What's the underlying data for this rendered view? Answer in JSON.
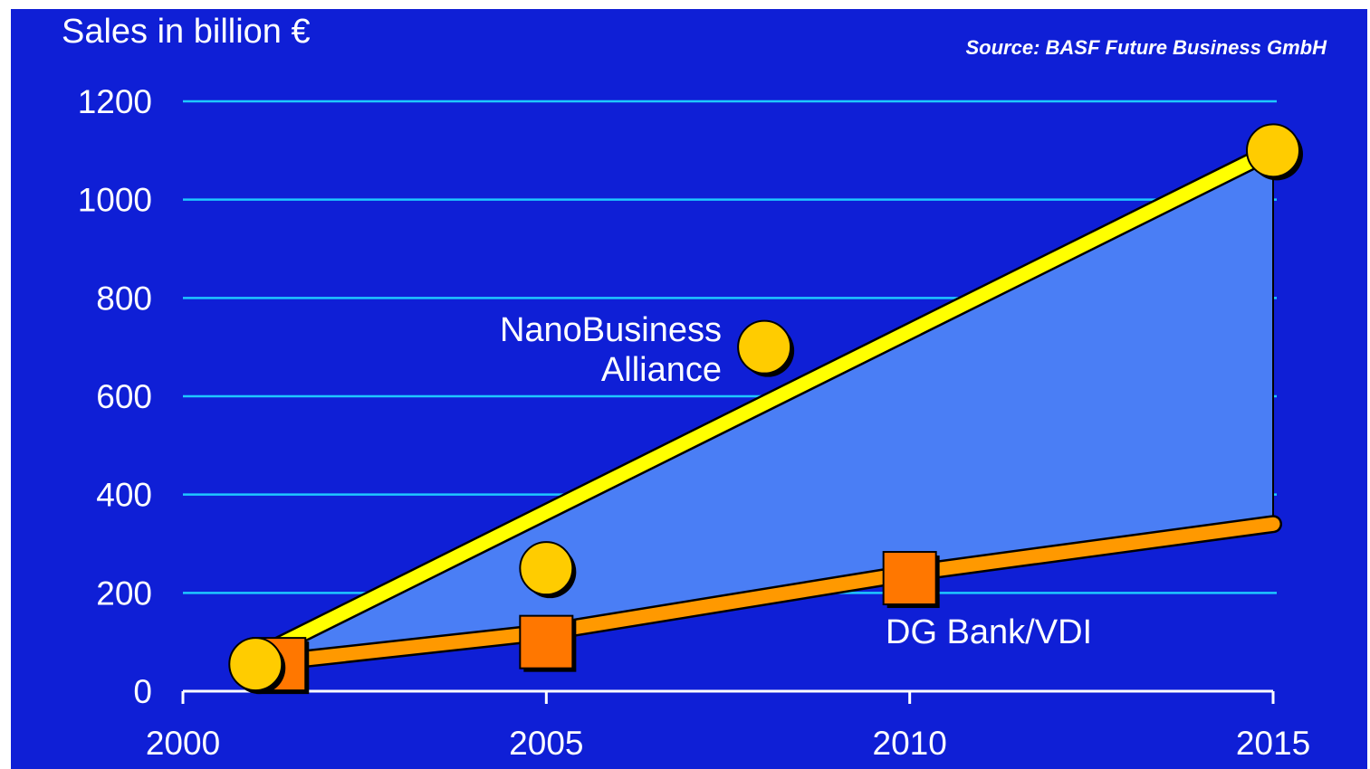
{
  "chart_data": {
    "type": "line",
    "title": "Sales in billion €",
    "source": "Source: BASF Future Business GmbH",
    "xlim": [
      2000,
      2015
    ],
    "ylim": [
      0,
      1200
    ],
    "x_ticks": [
      "2000",
      "2005",
      "2010",
      "2015"
    ],
    "y_ticks": [
      "0",
      "200",
      "400",
      "600",
      "800",
      "1000",
      "1200"
    ],
    "grid": true,
    "band_fill": "#4a7ef5",
    "series": [
      {
        "name": "NanoBusiness Alliance",
        "line": [
          [
            2001,
            70
          ],
          [
            2015,
            1100
          ]
        ],
        "points": [
          [
            2001,
            55
          ],
          [
            2005,
            250
          ],
          [
            2008,
            700
          ],
          [
            2015,
            1100
          ]
        ],
        "marker": "circle",
        "line_color": "#ffff00",
        "marker_color": "#ffcc00",
        "label_lines": [
          "NanoBusiness",
          "Alliance"
        ]
      },
      {
        "name": "DG Bank/VDI",
        "line": [
          [
            2001,
            55
          ],
          [
            2005,
            120
          ],
          [
            2010,
            240
          ],
          [
            2015,
            340
          ]
        ],
        "points": [
          [
            2001,
            55
          ],
          [
            2005,
            100
          ],
          [
            2010,
            230
          ]
        ],
        "marker": "square",
        "line_color": "#ff9900",
        "marker_color": "#ff7700",
        "label_lines": [
          "DG Bank/VDI"
        ]
      }
    ]
  }
}
